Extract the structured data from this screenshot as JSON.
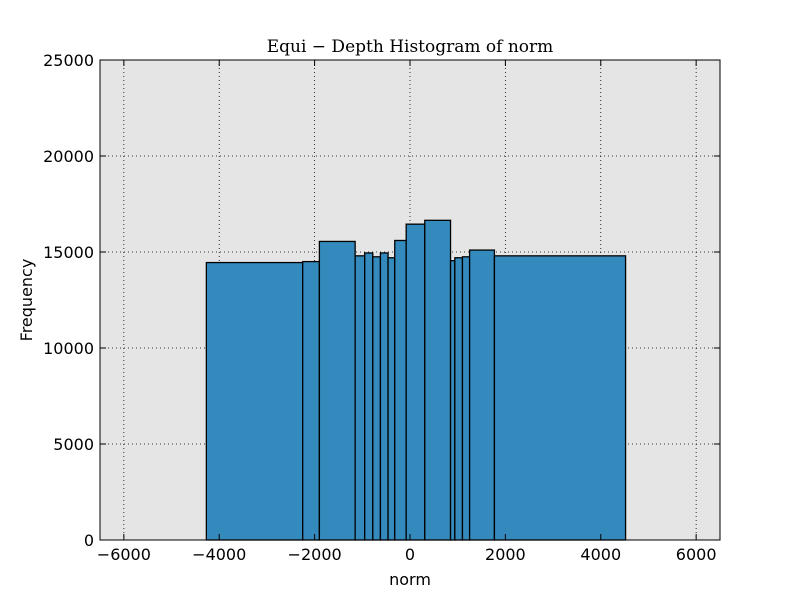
{
  "chart_data": {
    "type": "bar",
    "title": "Equi − Depth Histogram of norm",
    "xlabel": "norm",
    "ylabel": "Frequency",
    "xlim": [
      -6500,
      6500
    ],
    "ylim": [
      0,
      25000
    ],
    "xticks": [
      -6000,
      -4000,
      -2000,
      0,
      2000,
      4000,
      6000
    ],
    "xtick_labels": [
      "−6000",
      "−4000",
      "−2000",
      "0",
      "2000",
      "4000",
      "6000"
    ],
    "yticks": [
      0,
      5000,
      10000,
      15000,
      20000,
      25000
    ],
    "ytick_labels": [
      "0",
      "5000",
      "10000",
      "15000",
      "20000",
      "25000"
    ],
    "grid": true,
    "bar_color": "#348abd",
    "background_color": "#e5e5e5",
    "bins": [
      {
        "x0": -4270,
        "x1": -2250,
        "value": 14450
      },
      {
        "x0": -2250,
        "x1": -1900,
        "value": 14500
      },
      {
        "x0": -1900,
        "x1": -1150,
        "value": 15550
      },
      {
        "x0": -1150,
        "x1": -950,
        "value": 14800
      },
      {
        "x0": -950,
        "x1": -780,
        "value": 14950
      },
      {
        "x0": -780,
        "x1": -620,
        "value": 14750
      },
      {
        "x0": -620,
        "x1": -460,
        "value": 14950
      },
      {
        "x0": -460,
        "x1": -320,
        "value": 14700
      },
      {
        "x0": -320,
        "x1": -80,
        "value": 15600
      },
      {
        "x0": -80,
        "x1": 310,
        "value": 16450
      },
      {
        "x0": 310,
        "x1": 850,
        "value": 16650
      },
      {
        "x0": 850,
        "x1": 940,
        "value": 14550
      },
      {
        "x0": 940,
        "x1": 1100,
        "value": 14700
      },
      {
        "x0": 1100,
        "x1": 1250,
        "value": 14750
      },
      {
        "x0": 1250,
        "x1": 1770,
        "value": 15100
      },
      {
        "x0": 1770,
        "x1": 4520,
        "value": 14800
      }
    ]
  }
}
